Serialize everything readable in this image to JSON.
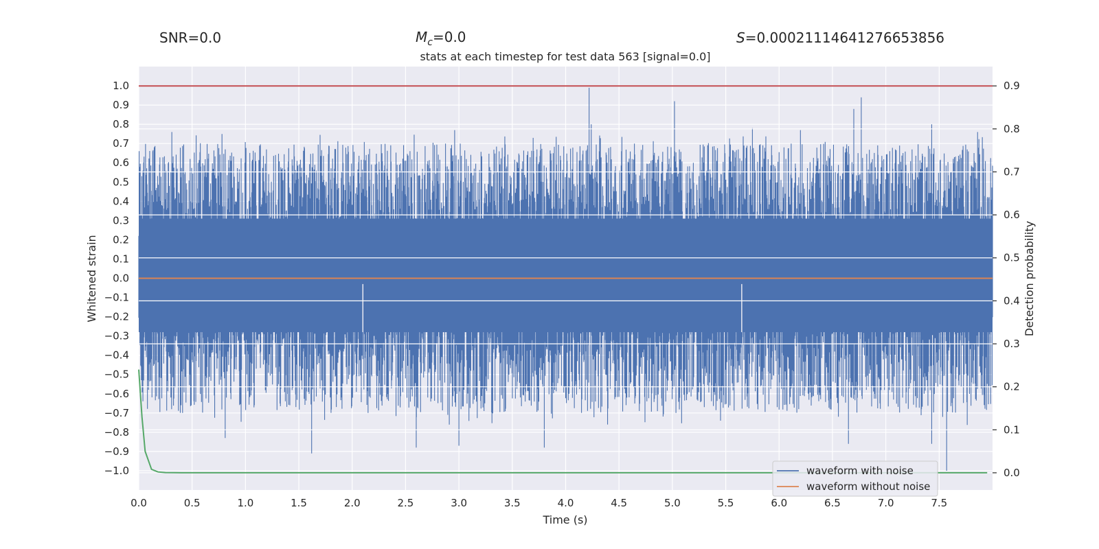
{
  "header": {
    "snr": "SNR=0.0",
    "mc_symbol": "M",
    "mc_sub": "c",
    "mc_value": "=0.0",
    "s_symbol": "S",
    "s_value": "=0.00021114641276653856"
  },
  "chart_data": {
    "type": "line",
    "title": "stats at each timestep for test data 563 [signal=0.0]",
    "xlabel": "Time (s)",
    "ylabel_left": "Whitened strain",
    "ylabel_right": "Detection probability",
    "xlim": [
      0.0,
      8.0
    ],
    "ylim_left": [
      -1.1,
      1.1
    ],
    "ylim_right": [
      -0.04,
      0.945
    ],
    "x_ticks": [
      "0.0",
      "0.5",
      "1.0",
      "1.5",
      "2.0",
      "2.5",
      "3.0",
      "3.5",
      "4.0",
      "4.5",
      "5.0",
      "5.5",
      "6.0",
      "6.5",
      "7.0",
      "7.5"
    ],
    "y_ticks_left": [
      "1.0",
      "0.9",
      "0.8",
      "0.7",
      "0.6",
      "0.5",
      "0.4",
      "0.3",
      "0.2",
      "0.1",
      "0.0",
      "−0.1",
      "−0.2",
      "−0.3",
      "−0.4",
      "−0.5",
      "−0.6",
      "−0.7",
      "−0.8",
      "−0.9",
      "−1.0"
    ],
    "y_ticks_right": [
      "0.9",
      "0.8",
      "0.7",
      "0.6",
      "0.5",
      "0.4",
      "0.3",
      "0.2",
      "0.1",
      "0.0"
    ],
    "threshold": 0.9,
    "series": [
      {
        "name": "waveform with noise",
        "axis": "left",
        "color": "#4c72b0",
        "style": "dense noise between approx -0.9 and 1.0"
      },
      {
        "name": "waveform without noise",
        "axis": "left",
        "color": "#dd8452",
        "x": [
          0.0,
          8.0
        ],
        "values": [
          0.0,
          0.0
        ]
      },
      {
        "name": "detection probability",
        "axis": "right",
        "color": "#55a868",
        "x": [
          0.0,
          0.03,
          0.06,
          0.12,
          0.18,
          0.25,
          0.4,
          1.0,
          7.95
        ],
        "values": [
          0.24,
          0.13,
          0.05,
          0.008,
          0.002,
          0.0005,
          0.0,
          0.0,
          0.0
        ]
      },
      {
        "name": "threshold",
        "axis": "right",
        "color": "#c44e52",
        "x": [
          0.0,
          8.0
        ],
        "values": [
          0.9,
          0.9
        ]
      }
    ],
    "noise_spikes": [
      {
        "x": 0.31,
        "v": 0.76
      },
      {
        "x": 0.78,
        "v": 0.75
      },
      {
        "x": 2.96,
        "v": 0.77
      },
      {
        "x": 4.22,
        "v": 0.99
      },
      {
        "x": 4.24,
        "v": 0.8
      },
      {
        "x": 5.02,
        "v": 0.92
      },
      {
        "x": 6.7,
        "v": 0.88
      },
      {
        "x": 6.77,
        "v": 0.94
      },
      {
        "x": 7.43,
        "v": 0.8
      },
      {
        "x": 7.86,
        "v": 0.76
      },
      {
        "x": 5.75,
        "v": 0.78
      },
      {
        "x": 6.2,
        "v": 0.77
      },
      {
        "x": 1.62,
        "v": -0.91
      },
      {
        "x": 0.81,
        "v": -0.83
      },
      {
        "x": 2.6,
        "v": -0.88
      },
      {
        "x": 3.8,
        "v": -0.88
      },
      {
        "x": 7.57,
        "v": -1.0
      },
      {
        "x": 6.65,
        "v": -0.86
      },
      {
        "x": 7.43,
        "v": -0.86
      },
      {
        "x": 3.0,
        "v": -0.87
      },
      {
        "x": 2.1,
        "v": -0.03
      },
      {
        "x": 5.65,
        "v": -0.03
      }
    ],
    "legend": {
      "position": "lower-right",
      "entries": [
        "waveform with noise",
        "waveform without noise"
      ]
    }
  }
}
